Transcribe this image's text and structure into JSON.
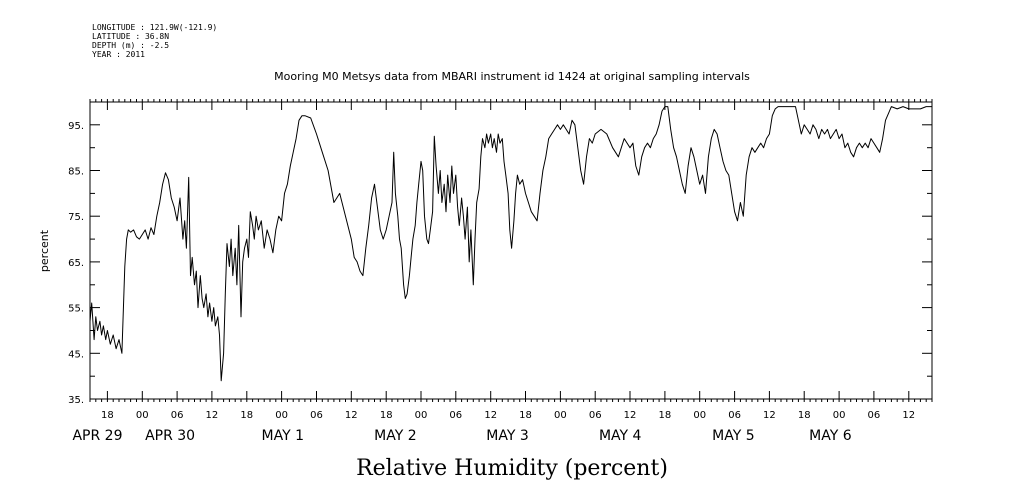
{
  "header": {
    "longitude": "LONGITUDE : 121.9W(-121.9)",
    "latitude": "LATITUDE : 36.8N",
    "depth": "DEPTH (m) : -2.5",
    "year": "YEAR : 2011"
  },
  "chart_data": {
    "type": "line",
    "title": "Mooring M0 Metsys data from MBARI instrument id 1424 at original sampling intervals",
    "xlabel": "Relative Humidity (percent)",
    "ylabel": "percent",
    "ylim": [
      35,
      100
    ],
    "y_ticks": [
      35,
      45,
      55,
      65,
      75,
      85,
      95
    ],
    "y_tick_labels": [
      "35.",
      "45.",
      "55.",
      "65.",
      "75.",
      "85.",
      "95."
    ],
    "x_unit": "hours since 2011-04-29 00:00",
    "xlim": [
      15,
      160
    ],
    "hour_ticks": [
      {
        "t": 18,
        "label": "18"
      },
      {
        "t": 24,
        "label": "00"
      },
      {
        "t": 30,
        "label": "06"
      },
      {
        "t": 36,
        "label": "12"
      },
      {
        "t": 42,
        "label": "18"
      },
      {
        "t": 48,
        "label": "00"
      },
      {
        "t": 54,
        "label": "06"
      },
      {
        "t": 60,
        "label": "12"
      },
      {
        "t": 66,
        "label": "18"
      },
      {
        "t": 72,
        "label": "00"
      },
      {
        "t": 78,
        "label": "06"
      },
      {
        "t": 84,
        "label": "12"
      },
      {
        "t": 90,
        "label": "18"
      },
      {
        "t": 96,
        "label": "00"
      },
      {
        "t": 102,
        "label": "06"
      },
      {
        "t": 108,
        "label": "12"
      },
      {
        "t": 114,
        "label": "18"
      },
      {
        "t": 120,
        "label": "00"
      },
      {
        "t": 126,
        "label": "06"
      },
      {
        "t": 132,
        "label": "12"
      },
      {
        "t": 138,
        "label": "18"
      },
      {
        "t": 144,
        "label": "00"
      },
      {
        "t": 150,
        "label": "06"
      },
      {
        "t": 156,
        "label": "12"
      }
    ],
    "day_labels": [
      {
        "t": 16.3,
        "label": "APR 29"
      },
      {
        "t": 28.8,
        "label": "APR 30"
      },
      {
        "t": 48.2,
        "label": "MAY  1"
      },
      {
        "t": 67.6,
        "label": "MAY  2"
      },
      {
        "t": 86.9,
        "label": "MAY  3"
      },
      {
        "t": 106.3,
        "label": "MAY  4"
      },
      {
        "t": 125.8,
        "label": "MAY  5"
      },
      {
        "t": 142.5,
        "label": "MAY  6"
      }
    ],
    "grid": false,
    "series": [
      {
        "color": "#000000",
        "x": [
          15.0,
          15.3,
          15.7,
          16.0,
          16.3,
          16.7,
          17.0,
          17.3,
          17.7,
          18.0,
          18.5,
          19.0,
          19.5,
          20.0,
          20.5,
          21.0,
          21.3,
          21.6,
          22.0,
          22.5,
          23.0,
          23.5,
          24.0,
          24.5,
          25.0,
          25.5,
          26.0,
          26.5,
          27.0,
          27.5,
          28.0,
          28.5,
          29.0,
          29.5,
          30.0,
          30.5,
          31.0,
          31.3,
          31.6,
          32.0,
          32.3,
          32.6,
          33.0,
          33.3,
          33.6,
          34.0,
          34.3,
          34.6,
          35.0,
          35.3,
          35.6,
          36.0,
          36.3,
          36.6,
          37.0,
          37.3,
          37.6,
          38.0,
          38.3,
          38.6,
          39.0,
          39.3,
          39.6,
          40.0,
          40.3,
          40.6,
          41.0,
          41.3,
          41.6,
          42.0,
          42.3,
          42.6,
          43.0,
          43.3,
          43.6,
          44.0,
          44.5,
          45.0,
          45.5,
          46.0,
          46.5,
          47.0,
          47.5,
          48.0,
          48.5,
          49.0,
          49.5,
          50.0,
          50.5,
          51.0,
          51.5,
          52.0,
          53.0,
          54.0,
          55.0,
          56.0,
          57.0,
          58.0,
          59.0,
          60.0,
          60.5,
          61.0,
          61.5,
          62.0,
          62.5,
          63.0,
          63.5,
          64.0,
          64.5,
          65.0,
          65.5,
          66.0,
          66.5,
          67.0,
          67.3,
          67.6,
          68.0,
          68.3,
          68.6,
          69.0,
          69.3,
          69.6,
          70.0,
          70.3,
          70.6,
          71.0,
          71.3,
          71.6,
          72.0,
          72.3,
          72.6,
          73.0,
          73.3,
          73.6,
          74.0,
          74.3,
          74.6,
          75.0,
          75.3,
          75.6,
          76.0,
          76.3,
          76.6,
          77.0,
          77.3,
          77.6,
          78.0,
          78.3,
          78.6,
          79.0,
          79.3,
          79.6,
          80.0,
          80.3,
          80.6,
          81.0,
          81.3,
          81.6,
          82.0,
          82.3,
          82.6,
          83.0,
          83.3,
          83.6,
          84.0,
          84.3,
          84.6,
          85.0,
          85.3,
          85.6,
          86.0,
          86.3,
          86.6,
          87.0,
          87.3,
          87.6,
          88.0,
          88.3,
          88.6,
          89.0,
          89.5,
          90.0,
          90.5,
          91.0,
          91.5,
          92.0,
          92.5,
          93.0,
          93.5,
          94.0,
          94.5,
          95.0,
          95.5,
          96.0,
          96.5,
          97.0,
          97.5,
          98.0,
          98.5,
          99.0,
          99.5,
          100.0,
          100.5,
          101.0,
          101.5,
          102.0,
          103.0,
          104.0,
          105.0,
          106.0,
          107.0,
          108.0,
          108.5,
          109.0,
          109.5,
          110.0,
          110.5,
          111.0,
          111.5,
          112.0,
          112.5,
          113.0,
          113.5,
          114.0,
          114.5,
          115.0,
          115.5,
          116.0,
          116.5,
          117.0,
          117.5,
          118.0,
          118.5,
          119.0,
          119.5,
          120.0,
          120.5,
          121.0,
          121.5,
          122.0,
          122.5,
          123.0,
          123.5,
          124.0,
          124.5,
          125.0,
          125.5,
          126.0,
          126.5,
          127.0,
          127.5,
          128.0,
          128.5,
          129.0,
          129.5,
          130.0,
          130.5,
          131.0,
          131.5,
          132.0,
          132.5,
          133.0,
          133.5,
          134.0,
          134.5,
          135.0,
          135.5,
          136.0,
          136.5,
          137.0,
          137.5,
          138.0,
          138.5,
          139.0,
          139.5,
          140.0,
          140.5,
          141.0,
          141.5,
          142.0,
          142.5,
          143.0,
          143.5,
          144.0,
          144.5,
          145.0,
          145.5,
          146.0,
          146.5,
          147.0,
          147.5,
          148.0,
          148.5,
          149.0,
          149.5,
          150.0,
          150.5,
          151.0,
          151.5,
          152.0,
          153.0,
          154.0,
          155.0,
          156.0,
          157.0,
          158.0,
          159.0,
          160.0
        ],
        "y": [
          52.0,
          56.0,
          48.0,
          53.0,
          50.0,
          52.0,
          49.0,
          51.0,
          48.0,
          50.0,
          47.0,
          49.0,
          46.0,
          48.0,
          45.0,
          64.0,
          70.0,
          72.0,
          71.5,
          72.0,
          70.5,
          70.0,
          71.0,
          72.0,
          70.0,
          72.5,
          71.0,
          75.0,
          78.0,
          82.0,
          84.5,
          83.0,
          79.0,
          77.0,
          74.0,
          79.0,
          70.0,
          74.0,
          68.0,
          83.5,
          62.0,
          66.0,
          60.0,
          63.0,
          55.0,
          62.0,
          57.0,
          55.0,
          58.0,
          53.0,
          56.0,
          52.0,
          55.0,
          51.0,
          53.0,
          49.0,
          39.0,
          45.0,
          58.0,
          69.0,
          64.0,
          70.0,
          62.0,
          68.0,
          60.0,
          73.0,
          53.0,
          65.0,
          68.0,
          70.0,
          66.0,
          76.0,
          73.0,
          70.0,
          75.0,
          72.0,
          74.0,
          68.0,
          72.0,
          70.0,
          67.0,
          72.0,
          75.0,
          74.0,
          80.0,
          82.0,
          86.0,
          89.0,
          92.0,
          96.0,
          97.0,
          97.0,
          96.5,
          93.0,
          89.0,
          85.0,
          78.0,
          80.0,
          75.0,
          70.0,
          66.0,
          65.0,
          63.0,
          62.0,
          68.0,
          73.0,
          79.0,
          82.0,
          77.0,
          72.0,
          70.0,
          72.0,
          75.0,
          78.0,
          89.0,
          80.0,
          75.0,
          70.0,
          68.0,
          60.0,
          57.0,
          58.0,
          62.0,
          66.0,
          70.0,
          73.0,
          78.0,
          82.0,
          87.0,
          85.0,
          75.0,
          70.0,
          69.0,
          72.0,
          76.0,
          92.5,
          86.0,
          80.0,
          85.0,
          78.0,
          82.0,
          76.0,
          84.0,
          78.0,
          86.0,
          80.0,
          84.0,
          77.0,
          73.0,
          79.0,
          75.0,
          70.0,
          77.0,
          65.0,
          72.0,
          60.0,
          70.0,
          78.0,
          81.0,
          88.0,
          92.0,
          90.0,
          93.0,
          91.0,
          93.0,
          90.0,
          92.0,
          89.0,
          93.0,
          91.0,
          92.0,
          87.0,
          84.0,
          80.0,
          72.0,
          68.0,
          74.0,
          80.0,
          84.0,
          82.0,
          83.0,
          80.0,
          78.0,
          76.0,
          75.0,
          74.0,
          80.0,
          85.0,
          88.0,
          92.0,
          93.0,
          94.0,
          95.0,
          94.0,
          95.0,
          94.0,
          93.0,
          96.0,
          95.0,
          90.0,
          85.0,
          82.0,
          88.0,
          92.0,
          91.0,
          93.0,
          94.0,
          93.0,
          90.0,
          88.0,
          92.0,
          90.0,
          91.0,
          86.0,
          84.0,
          88.0,
          90.0,
          91.0,
          90.0,
          92.0,
          93.0,
          95.0,
          98.0,
          99.0,
          99.0,
          94.0,
          90.0,
          88.0,
          85.0,
          82.0,
          80.0,
          86.0,
          90.0,
          88.0,
          85.0,
          82.0,
          84.0,
          80.0,
          88.0,
          92.0,
          94.0,
          93.0,
          90.0,
          87.0,
          85.0,
          84.0,
          80.0,
          76.0,
          74.0,
          78.0,
          75.0,
          84.0,
          88.0,
          90.0,
          89.0,
          90.0,
          91.0,
          90.0,
          92.0,
          93.0,
          97.0,
          98.5,
          99.0,
          99.0,
          99.0,
          99.0,
          99.0,
          99.0,
          99.0,
          96.0,
          93.0,
          95.0,
          94.0,
          93.0,
          95.0,
          94.0,
          92.0,
          94.0,
          93.0,
          94.0,
          92.0,
          93.0,
          94.0,
          92.0,
          93.0,
          90.0,
          91.0,
          89.0,
          88.0,
          90.0,
          91.0,
          90.0,
          91.0,
          90.0,
          92.0,
          91.0,
          90.0,
          89.0,
          92.0,
          96.0,
          99.0,
          98.5,
          99.0,
          98.5,
          98.5,
          98.5,
          99.0,
          99.0
        ]
      }
    ]
  }
}
